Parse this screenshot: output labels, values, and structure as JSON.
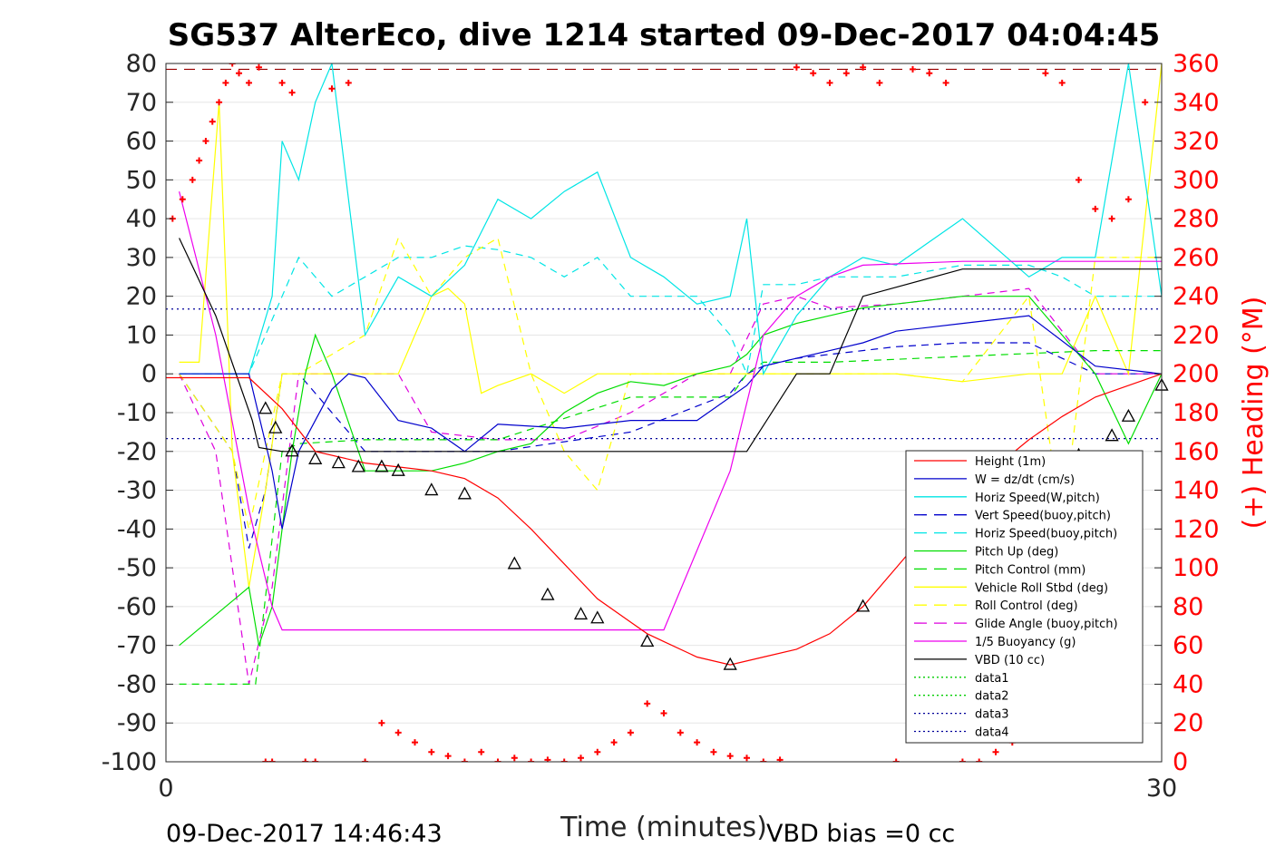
{
  "chart_data": {
    "type": "line",
    "title": "SG537 AlterEco, dive 1214 started 09-Dec-2017 04:04:45",
    "xlabel": "Time (minutes)",
    "ylabel": "",
    "y2label": "(+) Heading (°M)",
    "xlim": [
      0,
      30
    ],
    "ylim": [
      -100,
      80
    ],
    "y2lim": [
      0,
      360
    ],
    "xticks": [
      "0",
      "30"
    ],
    "yticks": [
      "80",
      "70",
      "60",
      "50",
      "40",
      "30",
      "20",
      "10",
      "0",
      "-10",
      "-20",
      "-30",
      "-40",
      "-50",
      "-60",
      "-70",
      "-80",
      "-90",
      "-100"
    ],
    "y2ticks": [
      "360",
      "340",
      "320",
      "300",
      "280",
      "260",
      "240",
      "220",
      "200",
      "180",
      "160",
      "140",
      "120",
      "100",
      "80",
      "60",
      "40",
      "20",
      "0"
    ],
    "footer_left": "09-Dec-2017 14:46:43",
    "footer_right": "VBD bias =0 cc",
    "colors": {
      "height": "#ff0000",
      "w": "#0000cc",
      "horiz": "#00e5e5",
      "pitch": "#00dd00",
      "roll": "#ffff00",
      "glide": "#dd00dd",
      "buoy": "#ee00ee",
      "vbd": "#000000",
      "data1": "#00cc00",
      "data3": "#000099",
      "heading": "#ff0000"
    },
    "legend": [
      {
        "label": "Height (1m)",
        "color": "#ff0000",
        "dash": ""
      },
      {
        "label": "W = dz/dt (cm/s)",
        "color": "#0000cc",
        "dash": ""
      },
      {
        "label": "Horiz Speed(W,pitch)",
        "color": "#00e5e5",
        "dash": ""
      },
      {
        "label": "Vert Speed(buoy,pitch)",
        "color": "#0000cc",
        "dash": "14,8"
      },
      {
        "label": "Horiz Speed(buoy,pitch)",
        "color": "#00e5e5",
        "dash": "14,8"
      },
      {
        "label": "Pitch Up (deg)",
        "color": "#00dd00",
        "dash": ""
      },
      {
        "label": "Pitch Control (mm)",
        "color": "#00dd00",
        "dash": "14,8"
      },
      {
        "label": "Vehicle Roll Stbd (deg)",
        "color": "#ffff00",
        "dash": ""
      },
      {
        "label": "Roll Control (deg)",
        "color": "#ffff00",
        "dash": "14,8"
      },
      {
        "label": "Glide Angle (buoy,pitch)",
        "color": "#dd00dd",
        "dash": "14,8"
      },
      {
        "label": "1/5 Buoyancy (g)",
        "color": "#ee00ee",
        "dash": ""
      },
      {
        "label": "VBD (10 cc)",
        "color": "#000000",
        "dash": ""
      },
      {
        "label": "data1",
        "color": "#00cc00",
        "dash": "2,3"
      },
      {
        "label": "data2",
        "color": "#00cc00",
        "dash": "2,3"
      },
      {
        "label": "data3",
        "color": "#000099",
        "dash": "2,3"
      },
      {
        "label": "data4",
        "color": "#000099",
        "dash": "2,3"
      }
    ],
    "series": [
      {
        "name": "Height (1m)",
        "color": "#ff0000",
        "dash": "",
        "x": [
          0,
          1.2,
          2.5,
          3.5,
          4.5,
          6,
          7,
          8,
          9,
          10,
          11,
          12,
          13,
          14,
          14.5,
          15,
          16,
          17,
          18,
          19,
          20,
          21,
          22,
          23,
          24,
          25,
          26,
          27,
          28,
          29,
          30
        ],
        "y": [
          -1,
          -1,
          -1,
          -9,
          -20,
          -23,
          -24,
          -25,
          -27,
          -32,
          -40,
          -49,
          -58,
          -64,
          -67,
          -69,
          -73,
          -75,
          -73,
          -71,
          -67,
          -60,
          -50,
          -40,
          -31,
          -24,
          -17,
          -11,
          -6,
          -3,
          0
        ]
      },
      {
        "name": "VBD (10 cc)",
        "color": "#000000",
        "dash": "",
        "x": [
          0.4,
          1.5,
          2.6,
          2.8,
          3.5,
          6.5,
          10,
          14,
          17.5,
          19,
          20,
          21,
          24,
          29,
          30
        ],
        "y": [
          35,
          15,
          -12,
          -19,
          -20,
          -20,
          -20,
          -20,
          -20,
          0,
          0,
          20,
          27,
          27,
          27
        ]
      },
      {
        "name": "1/5 Buoyancy (g)",
        "color": "#ee00ee",
        "dash": "",
        "x": [
          0.4,
          1.5,
          2.5,
          3.2,
          3.5,
          4,
          10,
          13.5,
          15,
          17,
          18,
          19,
          20,
          21,
          24,
          30
        ],
        "y": [
          47,
          10,
          -35,
          -60,
          -66,
          -66,
          -66,
          -66,
          -66,
          -25,
          10,
          20,
          25,
          28,
          29,
          29
        ]
      },
      {
        "name": "W = dz/dt (cm/s)",
        "color": "#0000cc",
        "dash": "",
        "x": [
          0.4,
          2.5,
          3.2,
          3.5,
          4,
          5,
          5.5,
          6,
          7,
          8,
          9,
          10,
          12,
          14,
          16,
          17.5,
          18,
          19,
          20,
          21,
          22,
          24,
          26,
          28,
          30
        ],
        "y": [
          0,
          0,
          -25,
          -40,
          -20,
          -4,
          0,
          -1,
          -12,
          -14,
          -20,
          -13,
          -14,
          -12,
          -12,
          -3,
          2,
          4,
          6,
          8,
          11,
          13,
          15,
          2,
          0
        ]
      },
      {
        "name": "Horiz Speed(W,pitch)",
        "color": "#00e5e5",
        "dash": "",
        "x": [
          0.4,
          2.5,
          3.2,
          3.5,
          4,
          4.5,
          5,
          6,
          7,
          8,
          9,
          10,
          11,
          12,
          13,
          14,
          15,
          16,
          17,
          17.5,
          18,
          19,
          20,
          21,
          22,
          24,
          26,
          27,
          28,
          29,
          30
        ],
        "y": [
          0,
          0,
          20,
          60,
          50,
          70,
          80,
          10,
          25,
          20,
          28,
          45,
          40,
          47,
          52,
          30,
          25,
          18,
          20,
          40,
          0,
          15,
          25,
          30,
          28,
          40,
          25,
          30,
          30,
          80,
          20
        ]
      },
      {
        "name": "Pitch Up (deg)",
        "color": "#00dd00",
        "dash": "",
        "x": [
          0.4,
          2.5,
          2.8,
          3.2,
          3.8,
          4.2,
          4.5,
          5,
          6,
          7,
          8,
          9,
          10,
          11,
          12,
          13,
          14,
          15,
          16,
          17,
          17.5,
          18,
          19,
          20,
          21,
          22,
          24,
          26,
          28,
          29,
          30
        ],
        "y": [
          -70,
          -55,
          -70,
          -60,
          -20,
          0,
          10,
          0,
          -25,
          -25,
          -25,
          -23,
          -20,
          -18,
          -10,
          -5,
          -2,
          -3,
          0,
          2,
          5,
          10,
          13,
          15,
          17,
          18,
          20,
          20,
          0,
          -18,
          0
        ]
      },
      {
        "name": "Pitch Control (mm)",
        "color": "#00dd00",
        "dash": "8,6",
        "x": [
          0.4,
          2.5,
          2.7,
          3.5,
          4,
          6,
          7,
          10,
          14,
          17,
          17.5,
          18,
          19,
          20,
          28,
          30
        ],
        "y": [
          -80,
          -80,
          -80,
          -20,
          -18,
          -17,
          -17,
          -17,
          -6,
          -6,
          0,
          3,
          3,
          3,
          6,
          6
        ]
      },
      {
        "name": "Vehicle Roll Stbd (deg)",
        "color": "#ffff00",
        "dash": "",
        "x": [
          0.4,
          1,
          1.6,
          2,
          2.5,
          3,
          3.5,
          4,
          6,
          7,
          8,
          8.5,
          9,
          9.5,
          10,
          11,
          12,
          13,
          14,
          15,
          16,
          17,
          18,
          19,
          20,
          22,
          24,
          26,
          27,
          28,
          29,
          30
        ],
        "y": [
          3,
          3,
          70,
          -20,
          -55,
          -30,
          0,
          0,
          0,
          0,
          20,
          22,
          18,
          -5,
          -3,
          0,
          -5,
          0,
          0,
          0,
          0,
          0,
          0,
          0,
          0,
          0,
          -2,
          0,
          0,
          20,
          0,
          80
        ]
      },
      {
        "name": "Roll Control (deg)",
        "color": "#ffff00",
        "dash": "8,6",
        "x": [
          0.4,
          2,
          2.5,
          3.5,
          4,
          6,
          7,
          8,
          9,
          10,
          11,
          12,
          13,
          14,
          15,
          16,
          18,
          20,
          22,
          24,
          26,
          27,
          28,
          29,
          30
        ],
        "y": [
          0,
          -20,
          -40,
          0,
          0,
          10,
          35,
          20,
          30,
          35,
          0,
          -20,
          -30,
          0,
          0,
          0,
          0,
          0,
          0,
          -2,
          20,
          -40,
          30,
          30,
          30
        ]
      },
      {
        "name": "Glide Angle (buoy,pitch)",
        "color": "#dd00dd",
        "dash": "8,6",
        "x": [
          0.4,
          1.5,
          2.5,
          3.2,
          4,
          4.5,
          6,
          7,
          8,
          10,
          12,
          14,
          16,
          17,
          18,
          19,
          20,
          22,
          24,
          26,
          28,
          30
        ],
        "y": [
          0,
          -20,
          -80,
          -55,
          0,
          0,
          0,
          0,
          -15,
          -17,
          -17,
          -10,
          0,
          0,
          18,
          20,
          17,
          18,
          20,
          22,
          0,
          0
        ]
      },
      {
        "name": "Horiz Speed(buoy,pitch)",
        "color": "#00e5e5",
        "dash": "8,6",
        "x": [
          0.4,
          2.5,
          3.5,
          4,
          5,
          6,
          7,
          8,
          9,
          10,
          11,
          12,
          13,
          14,
          16,
          17,
          17.5,
          18,
          19,
          20,
          22,
          24,
          26,
          27,
          28,
          30
        ],
        "y": [
          0,
          0,
          20,
          30,
          20,
          25,
          30,
          30,
          33,
          32,
          30,
          25,
          30,
          20,
          20,
          10,
          0,
          23,
          23,
          25,
          25,
          28,
          28,
          25,
          20,
          20
        ]
      },
      {
        "name": "Vert Speed(buoy,pitch)",
        "color": "#0000cc",
        "dash": "8,6",
        "x": [
          0.4,
          2,
          2.5,
          3,
          3.5,
          4,
          6,
          10,
          14,
          17,
          17.5,
          18,
          19,
          20,
          22,
          24,
          26,
          28,
          30
        ],
        "y": [
          0,
          -20,
          -45,
          -30,
          0,
          0,
          -20,
          -20,
          -15,
          -5,
          0,
          2,
          4,
          5,
          7,
          8,
          8,
          0,
          0
        ]
      }
    ],
    "reference_lines": [
      {
        "name": "data1",
        "y": 78.5,
        "color": "#990000",
        "dash": "12,8"
      },
      {
        "name": "data3",
        "y": 16.7,
        "color": "#000099",
        "dash": "2,4"
      },
      {
        "name": "data4",
        "y": -16.7,
        "color": "#000099",
        "dash": "2,4"
      }
    ],
    "triangle_markers": {
      "x": [
        3,
        3.3,
        3.8,
        4.5,
        5.2,
        5.8,
        6.5,
        7,
        8,
        9,
        10.5,
        11.5,
        12.5,
        13,
        14.5,
        17,
        21,
        26.5,
        27.5,
        28.5,
        29,
        30
      ],
      "y": [
        -9,
        -14,
        -20,
        -22,
        -23,
        -24,
        -24,
        -25,
        -30,
        -31,
        -49,
        -57,
        -62,
        -63,
        -69,
        -75,
        -60,
        -29,
        -21,
        -16,
        -11,
        -3
      ]
    },
    "heading": {
      "name": "(+) Heading",
      "color": "#ff0000",
      "x": [
        0.2,
        0.5,
        0.8,
        1.0,
        1.2,
        1.4,
        1.6,
        1.8,
        2.0,
        2.2,
        2.5,
        2.8,
        3.0,
        3.2,
        3.5,
        3.8,
        4.2,
        4.5,
        5.0,
        5.5,
        6.0,
        6.5,
        7.0,
        7.5,
        8.0,
        8.5,
        9.0,
        9.5,
        10.0,
        10.5,
        11.0,
        11.5,
        12.0,
        12.5,
        13.0,
        13.5,
        14.0,
        14.5,
        15.0,
        15.5,
        16.0,
        16.5,
        17.0,
        17.5,
        18.0,
        18.5,
        19.0,
        19.5,
        20.0,
        20.5,
        21.0,
        21.5,
        22.0,
        22.5,
        23.0,
        23.5,
        24.0,
        24.5,
        25.0,
        25.5,
        26.0,
        26.5,
        27.0,
        27.5,
        28.0,
        28.5,
        29.0,
        29.5
      ],
      "y": [
        280,
        290,
        300,
        310,
        320,
        330,
        340,
        350,
        360,
        355,
        350,
        358,
        0,
        0,
        350,
        345,
        0,
        0,
        347,
        350,
        0,
        20,
        15,
        10,
        5,
        3,
        0,
        5,
        0,
        2,
        0,
        1,
        0,
        2,
        5,
        10,
        15,
        30,
        25,
        15,
        10,
        5,
        3,
        2,
        0,
        1,
        358,
        355,
        350,
        355,
        358,
        350,
        0,
        357,
        355,
        350,
        0,
        0,
        5,
        10,
        20,
        355,
        350,
        300,
        285,
        280,
        290,
        340
      ]
    }
  }
}
